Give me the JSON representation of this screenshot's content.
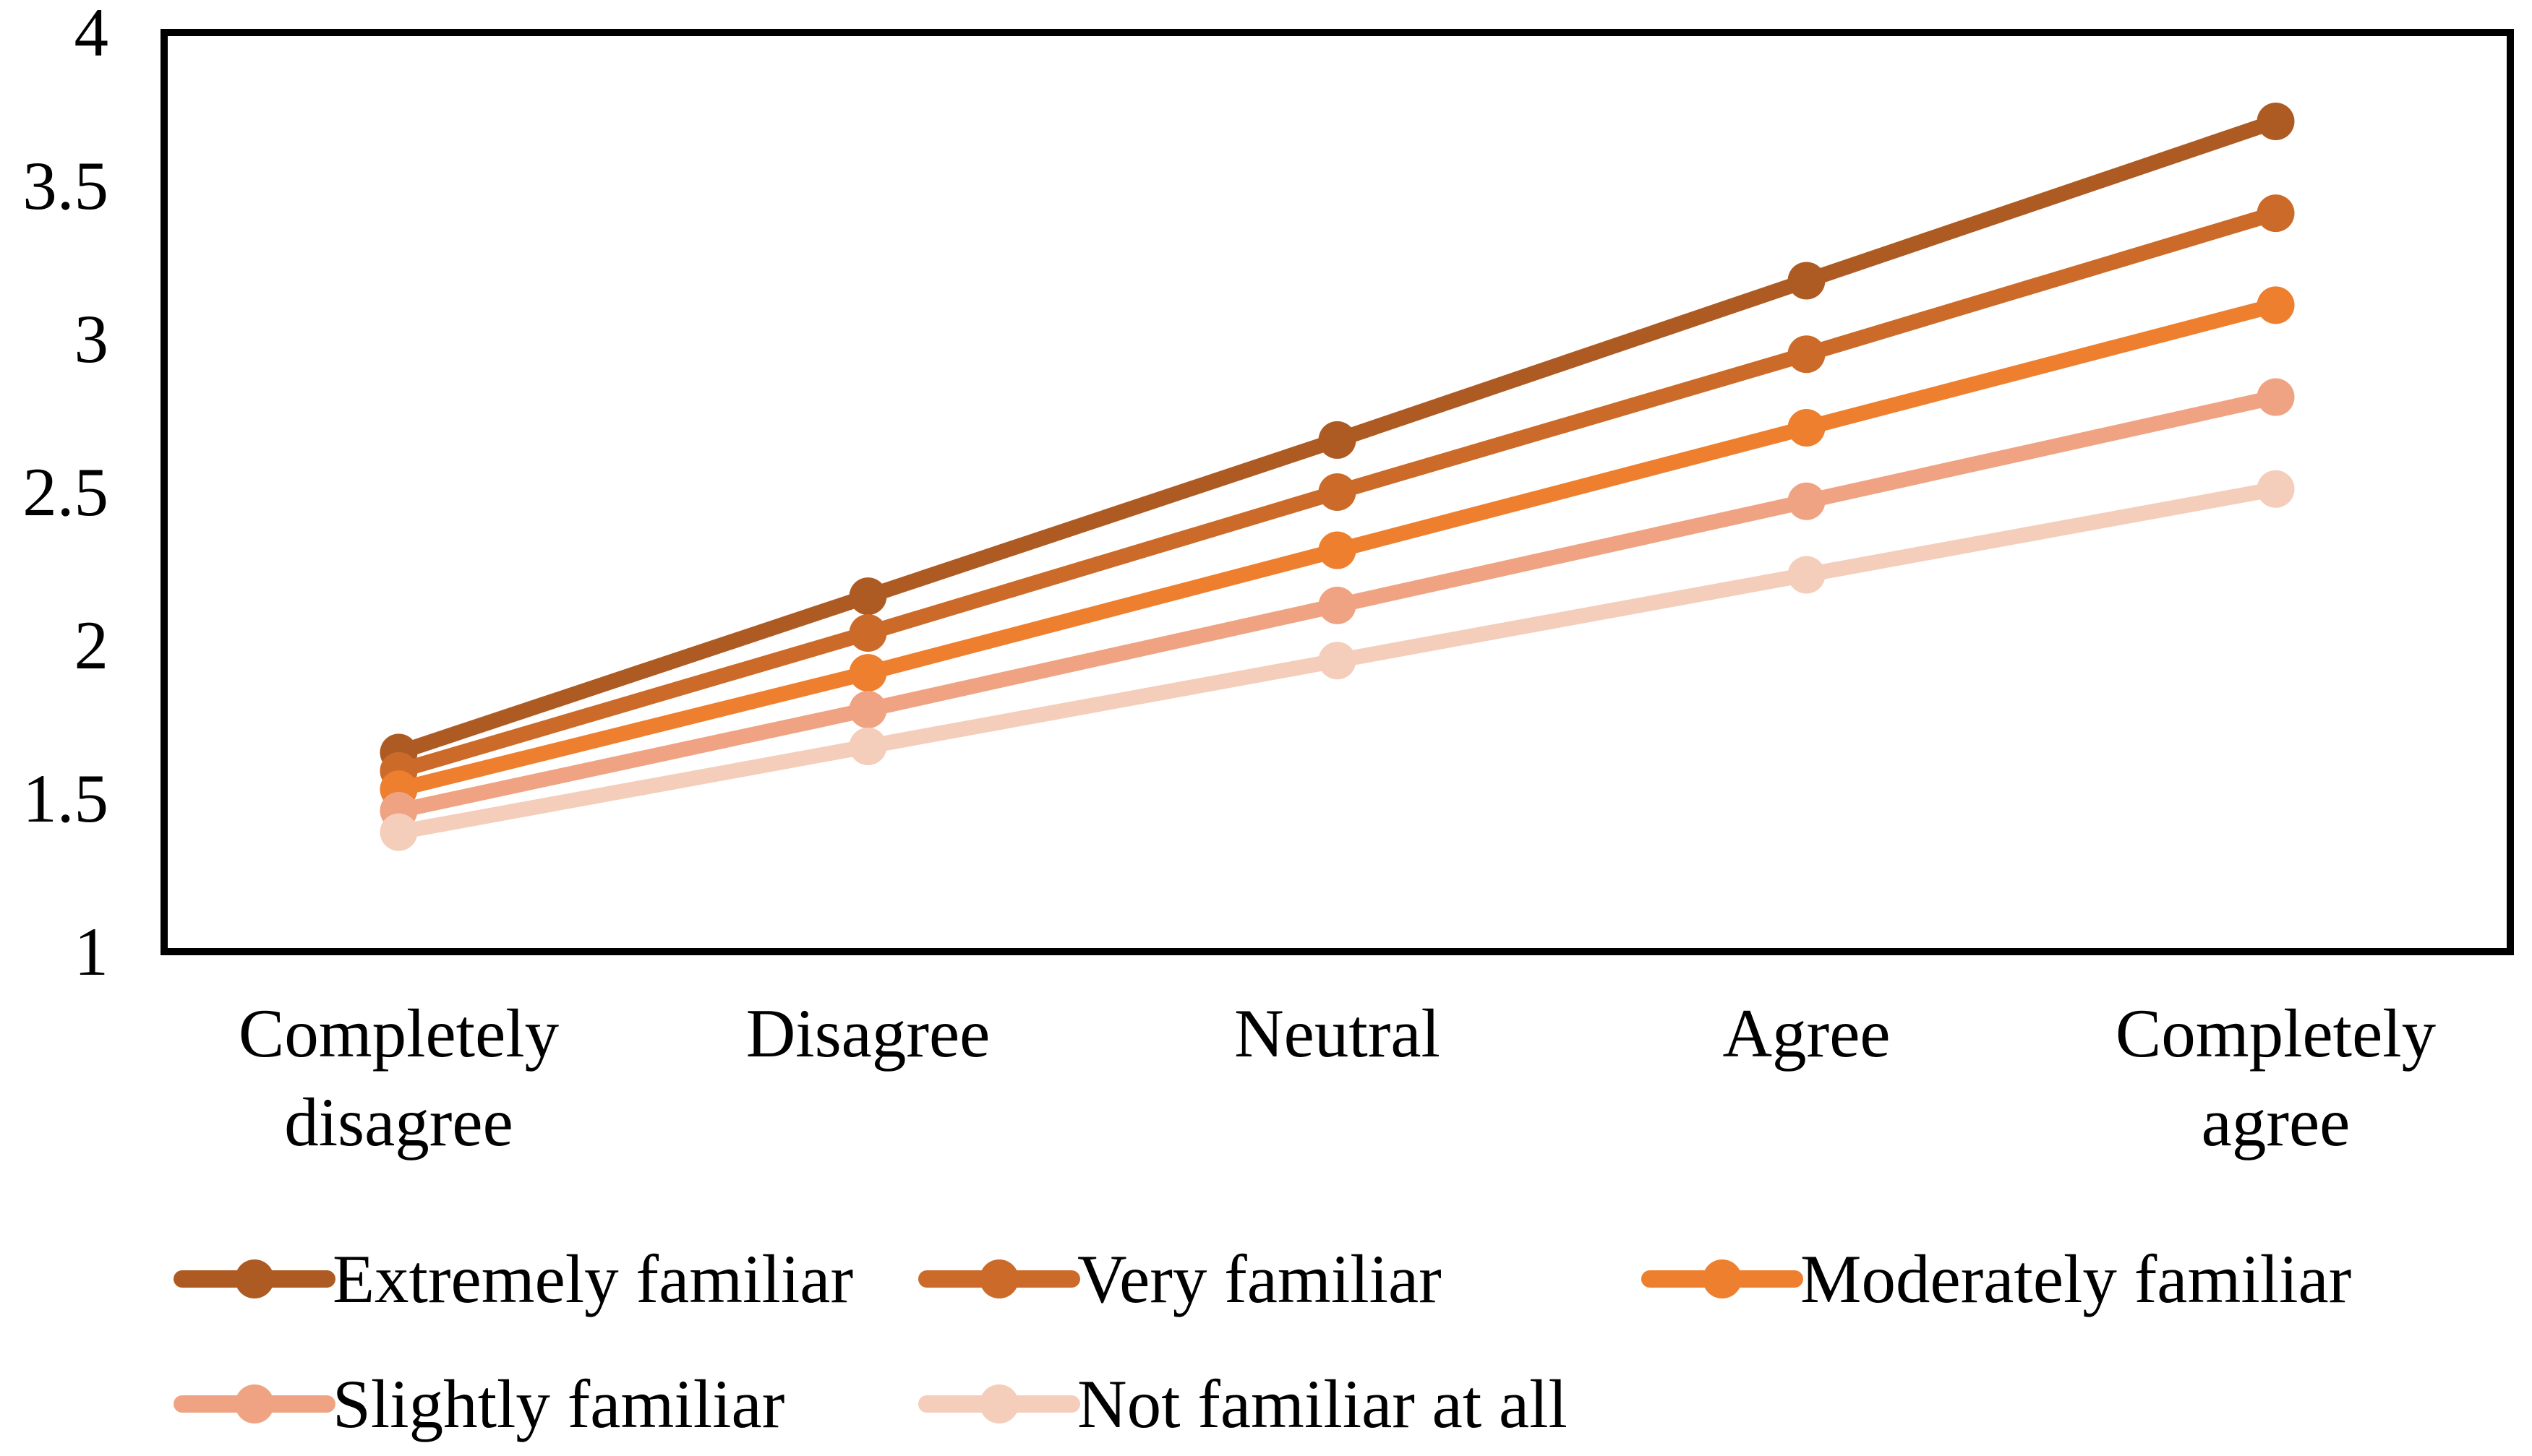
{
  "figure": {
    "description": "Line chart of agreement ratings by familiarity level",
    "background_color": "#ffffff",
    "frame_color": "#000000"
  },
  "chart_data": {
    "type": "line",
    "title": "",
    "xlabel": "",
    "ylabel": "",
    "categories": [
      "Completely disagree",
      "Disagree",
      "Neutral",
      "Agree",
      "Completely agree"
    ],
    "category_label_lines": [
      [
        "Completely",
        "disagree"
      ],
      [
        "Disagree"
      ],
      [
        "Neutral"
      ],
      [
        "Agree"
      ],
      [
        "Completely",
        "agree"
      ]
    ],
    "series": [
      {
        "name": "Extremely familiar",
        "color": "#AD5B23",
        "values": [
          1.65,
          2.16,
          2.67,
          3.19,
          3.71
        ]
      },
      {
        "name": "Very familiar",
        "color": "#CC6B29",
        "values": [
          1.59,
          2.04,
          2.5,
          2.95,
          3.41
        ]
      },
      {
        "name": "Moderately familiar",
        "color": "#EE7F2F",
        "values": [
          1.53,
          1.91,
          2.31,
          2.71,
          3.11
        ]
      },
      {
        "name": "Slightly familiar",
        "color": "#EFA383",
        "values": [
          1.46,
          1.79,
          2.13,
          2.47,
          2.81
        ]
      },
      {
        "name": "Not familiar at all",
        "color": "#F4CDBB",
        "values": [
          1.39,
          1.67,
          1.95,
          2.23,
          2.51
        ]
      }
    ],
    "y_axis": {
      "min": 1,
      "max": 4,
      "step": 0.5,
      "tick_labels": [
        "4",
        "3.5",
        "3",
        "2.5",
        "2",
        "1.5",
        "1"
      ]
    },
    "grid": false,
    "marker": "circle",
    "legend_position": "bottom",
    "legend_rows": [
      [
        0,
        1,
        2
      ],
      [
        3,
        4
      ]
    ]
  }
}
